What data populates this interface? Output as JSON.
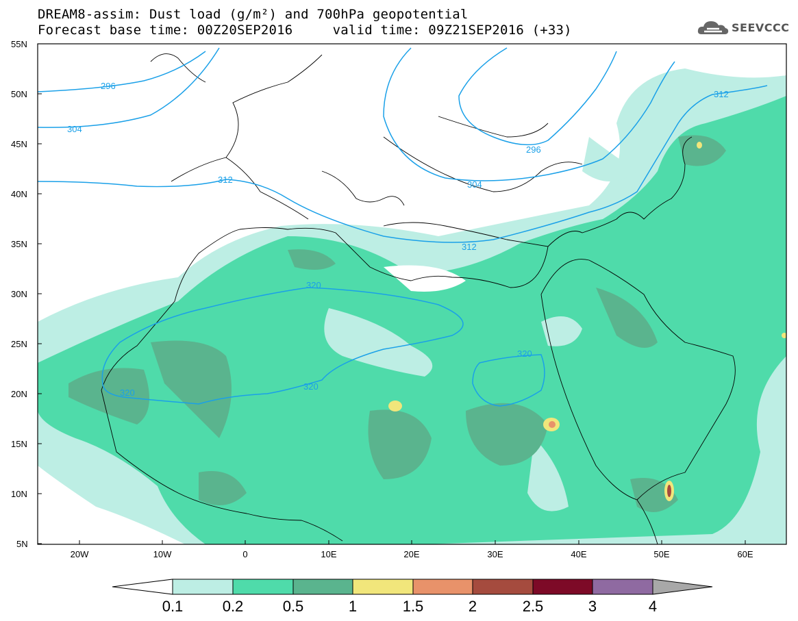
{
  "header": {
    "title_line1": "DREAM8-assim: Dust load (g/m²) and 700hPa geopotential",
    "title_line2": "Forecast base time: 00Z20SEP2016     valid time: 09Z21SEP2016 (+33)"
  },
  "logo": {
    "text": "SEEVCCC",
    "icon": "cloud-logo-icon"
  },
  "map": {
    "lat_labels": [
      "55N",
      "50N",
      "45N",
      "40N",
      "35N",
      "30N",
      "25N",
      "20N",
      "15N",
      "10N",
      "5N"
    ],
    "lon_labels": [
      "20W",
      "10W",
      "0",
      "10E",
      "20E",
      "30E",
      "40E",
      "50E",
      "60E"
    ],
    "contour_labels": [
      {
        "text": "296"
      },
      {
        "text": "304"
      },
      {
        "text": "312"
      },
      {
        "text": "296"
      },
      {
        "text": "304"
      },
      {
        "text": "312"
      },
      {
        "text": "312"
      },
      {
        "text": "320"
      },
      {
        "text": "320"
      },
      {
        "text": "320"
      },
      {
        "text": "320"
      }
    ]
  },
  "colors": {
    "c01": "#bdeee4",
    "c02": "#4fdbaa",
    "c05": "#5ab48e",
    "c1": "#f1e67b",
    "c15": "#e8926a",
    "c2": "#a54b3e",
    "c25": "#7d0a27",
    "c3": "#8f6aa1",
    "c4": "#a8a8a8",
    "contour": "#1aa0e8"
  },
  "colorbar": {
    "labels": [
      "0.1",
      "0.2",
      "0.5",
      "1",
      "1.5",
      "2",
      "2.5",
      "3",
      "4"
    ]
  }
}
